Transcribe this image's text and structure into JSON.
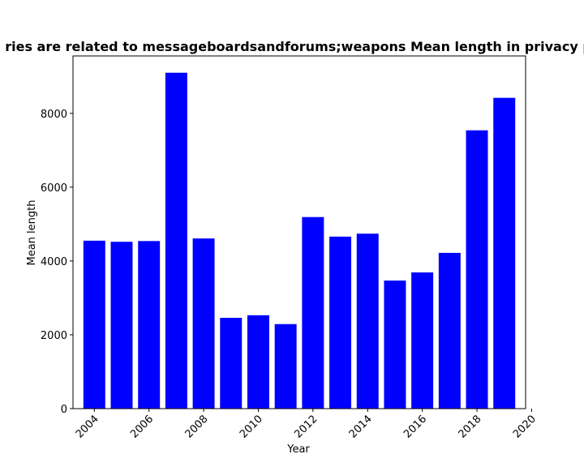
{
  "chart_data": {
    "type": "bar",
    "title": "ries are related to messageboardsandforums;weapons Mean length in privacy p",
    "xlabel": "Year",
    "ylabel": "Mean length",
    "categories": [
      2004,
      2005,
      2006,
      2007,
      2008,
      2009,
      2010,
      2011,
      2012,
      2013,
      2014,
      2015,
      2016,
      2017,
      2018,
      2019
    ],
    "values": [
      4550,
      4520,
      4540,
      9100,
      4610,
      2460,
      2530,
      2290,
      5190,
      4660,
      4740,
      3470,
      3690,
      4220,
      7540,
      8420
    ],
    "xlim": [
      2003.22,
      2019.78
    ],
    "ylim": [
      0,
      9555
    ],
    "xticks": [
      2004,
      2006,
      2008,
      2010,
      2012,
      2014,
      2016,
      2018,
      2020
    ],
    "yticks": [
      0,
      2000,
      4000,
      6000,
      8000
    ],
    "bar_color": "#0000ff",
    "grid": false,
    "legend": "none"
  }
}
